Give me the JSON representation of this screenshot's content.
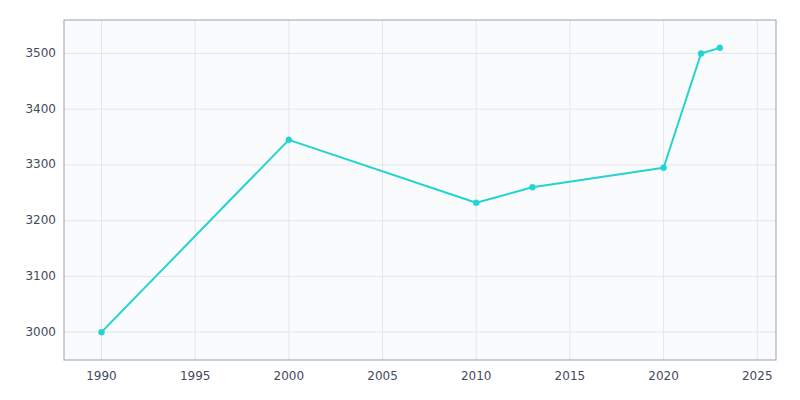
{
  "chart_data": {
    "type": "line",
    "x": [
      1990,
      2000,
      2010,
      2013,
      2020,
      2022,
      2023
    ],
    "values": [
      3000,
      3345,
      3232,
      3260,
      3295,
      3500,
      3510
    ],
    "color": "#22d3d3",
    "marker": "circle",
    "xlim": [
      1988,
      2026
    ],
    "ylim": [
      2950,
      3560
    ],
    "xticks": [
      1990,
      1995,
      2000,
      2005,
      2010,
      2015,
      2020,
      2025
    ],
    "yticks": [
      3000,
      3100,
      3200,
      3300,
      3400,
      3500
    ],
    "grid": true
  }
}
